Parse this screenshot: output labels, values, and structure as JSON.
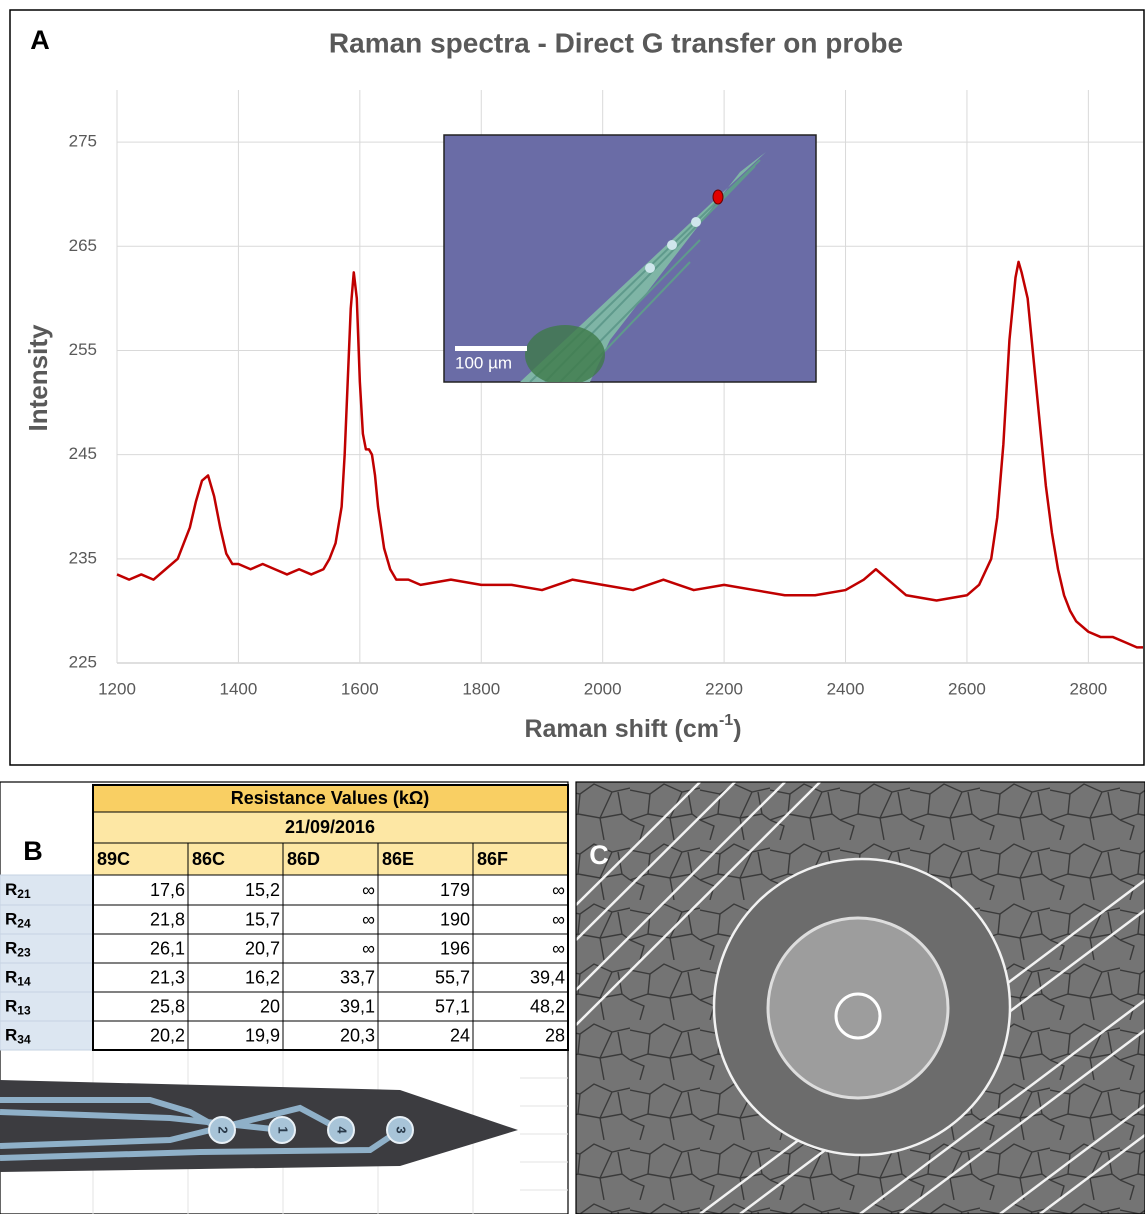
{
  "chart_data": {
    "type": "line",
    "panel_label": "A",
    "title": "Raman spectra - Direct G transfer on probe",
    "y_label": "Intensity",
    "x_label": "Raman shift (cm",
    "x_label_sup": "-1",
    "x_label_end": ")",
    "x": [
      1200,
      1220,
      1240,
      1260,
      1280,
      1300,
      1310,
      1320,
      1330,
      1340,
      1350,
      1360,
      1370,
      1380,
      1390,
      1400,
      1420,
      1440,
      1460,
      1480,
      1500,
      1520,
      1540,
      1550,
      1560,
      1570,
      1575,
      1580,
      1585,
      1590,
      1595,
      1600,
      1605,
      1610,
      1615,
      1620,
      1625,
      1630,
      1640,
      1650,
      1660,
      1680,
      1700,
      1750,
      1800,
      1850,
      1900,
      1950,
      2000,
      2050,
      2100,
      2150,
      2200,
      2250,
      2300,
      2350,
      2400,
      2430,
      2450,
      2470,
      2500,
      2550,
      2600,
      2620,
      2640,
      2650,
      2660,
      2670,
      2680,
      2685,
      2690,
      2700,
      2710,
      2720,
      2730,
      2740,
      2750,
      2760,
      2770,
      2780,
      2800,
      2820,
      2840,
      2860,
      2880,
      2890
    ],
    "values": [
      233.5,
      233,
      233.5,
      233,
      234,
      235,
      236.5,
      238,
      240.5,
      242.5,
      243,
      241,
      238,
      235.5,
      234.5,
      234.5,
      234,
      234.5,
      234,
      233.5,
      234,
      233.5,
      234,
      235,
      236.5,
      240,
      245,
      252,
      259,
      262.5,
      260,
      252,
      247,
      245.5,
      245.5,
      245,
      243,
      240,
      236,
      234,
      233,
      233,
      232.5,
      233,
      232.5,
      232.5,
      232,
      233,
      232.5,
      232,
      233,
      232,
      232.5,
      232,
      231.5,
      231.5,
      232,
      233,
      234,
      233,
      231.5,
      231,
      231.5,
      232.5,
      235,
      239,
      246,
      256,
      262,
      263.5,
      262.5,
      260,
      254,
      248,
      242,
      237.5,
      234,
      231.5,
      230,
      229,
      228,
      227.5,
      227.5,
      227,
      226.5,
      226.5
    ],
    "color": "#c00000",
    "xlim": [
      1200,
      2890
    ],
    "xticks": [
      1200,
      1400,
      1600,
      1800,
      2000,
      2200,
      2400,
      2600,
      2800
    ],
    "ylim": [
      225,
      280
    ],
    "yticks": [
      225,
      235,
      245,
      255,
      265,
      275
    ],
    "grid": true
  },
  "inset": {
    "scale_bar": "100 µm"
  },
  "table": {
    "panel_label": "B",
    "title": "Resistance Values (kΩ)",
    "date": "21/09/2016",
    "columns": [
      "89C",
      "86C",
      "86D",
      "86E",
      "86F"
    ],
    "rows": [
      {
        "label": {
          "letter": "R",
          "sub": "21"
        },
        "values": [
          "17,6",
          "15,2",
          "∞",
          "179",
          "∞"
        ]
      },
      {
        "label": {
          "letter": "R",
          "sub": "24"
        },
        "values": [
          "21,8",
          "15,7",
          "∞",
          "190",
          "∞"
        ]
      },
      {
        "label": {
          "letter": "R",
          "sub": "23"
        },
        "values": [
          "26,1",
          "20,7",
          "∞",
          "196",
          "∞"
        ]
      },
      {
        "label": {
          "letter": "R",
          "sub": "14"
        },
        "values": [
          "21,3",
          "16,2",
          "33,7",
          "55,7",
          "39,4"
        ]
      },
      {
        "label": {
          "letter": "R",
          "sub": "13"
        },
        "values": [
          "25,8",
          "20",
          "39,1",
          "57,1",
          "48,2"
        ]
      },
      {
        "label": {
          "letter": "R",
          "sub": "34"
        },
        "values": [
          "20,2",
          "19,9",
          "20,3",
          "24",
          "28"
        ]
      }
    ]
  },
  "probe_pads": [
    "2",
    "1",
    "4",
    "3"
  ],
  "sem": {
    "panel_label": "C"
  }
}
